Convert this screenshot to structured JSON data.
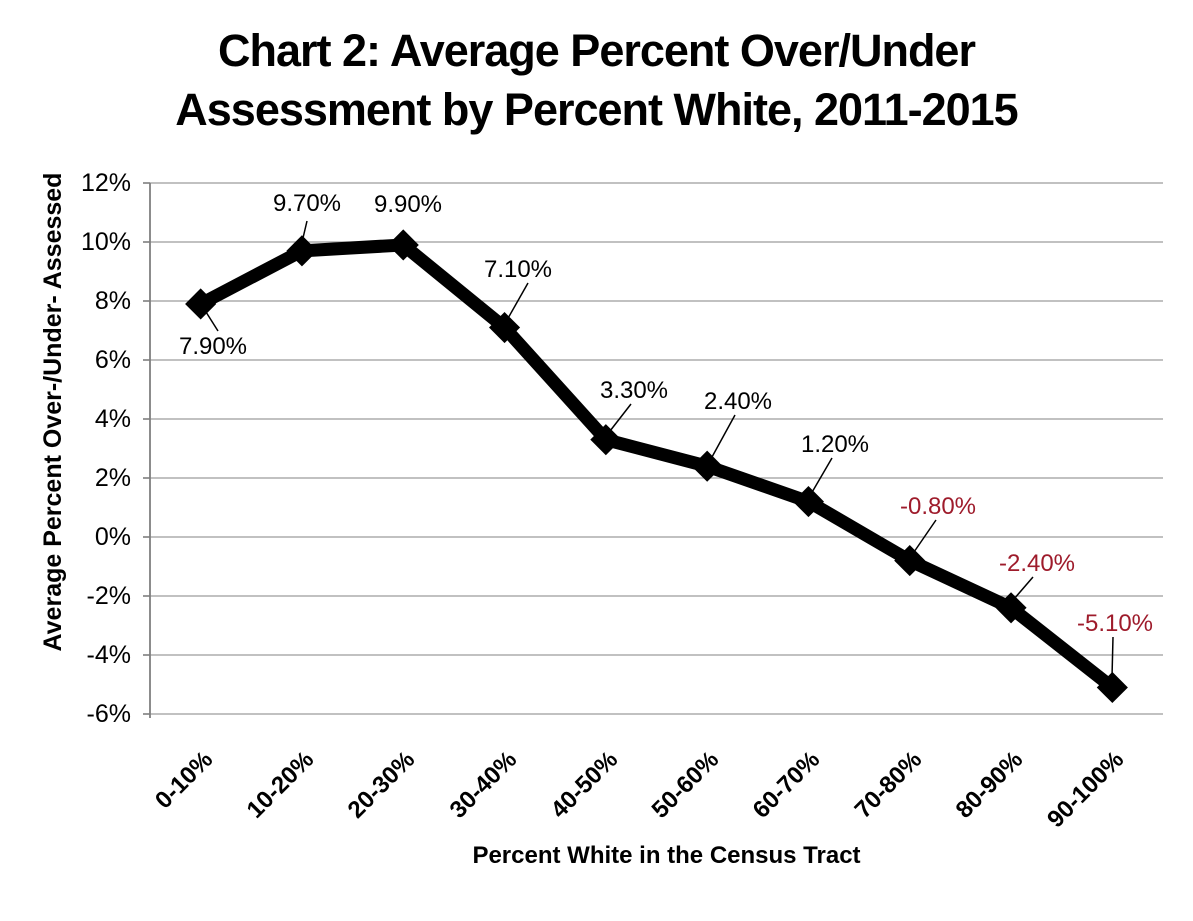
{
  "chart_data": {
    "type": "line",
    "title": "Chart 2: Average Percent Over/Under Assessment by Percent White, 2011-2015",
    "title_lines": [
      "Chart 2: Average Percent Over/Under",
      "Assessment by Percent White, 2011-2015"
    ],
    "xlabel": "Percent White in the Census Tract",
    "ylabel": "Average Percent Over-/Under- Assessed",
    "categories": [
      "0-10%",
      "10-20%",
      "20-30%",
      "30-40%",
      "40-50%",
      "50-60%",
      "60-70%",
      "70-80%",
      "80-90%",
      "90-100%"
    ],
    "series": [
      {
        "name": "Average Percent Over/Under Assessment",
        "values": [
          7.9,
          9.7,
          9.9,
          7.1,
          3.3,
          2.4,
          1.2,
          -0.8,
          -2.4,
          -5.1
        ],
        "data_labels": [
          "7.90%",
          "9.70%",
          "9.90%",
          "7.10%",
          "3.30%",
          "2.40%",
          "1.20%",
          "-0.80%",
          "-2.40%",
          "-5.10%"
        ],
        "marker": "diamond",
        "color": "#000000"
      }
    ],
    "y_ticks": [
      "12%",
      "10%",
      "8%",
      "6%",
      "4%",
      "2%",
      "0%",
      "-2%",
      "-4%",
      "-6%"
    ],
    "y_tick_values": [
      12,
      10,
      8,
      6,
      4,
      2,
      0,
      -2,
      -4,
      -6
    ],
    "ylim": [
      -6,
      12
    ],
    "grid": true,
    "legend_position": "none",
    "colors": {
      "series_line": "#000000",
      "positive_data_label": "#000000",
      "negative_data_label": "#9E1B2B",
      "gridline": "#9C9C9C",
      "axis_line": "#7F7F7F",
      "title_text": "#000000",
      "background": "#FFFFFF"
    }
  }
}
